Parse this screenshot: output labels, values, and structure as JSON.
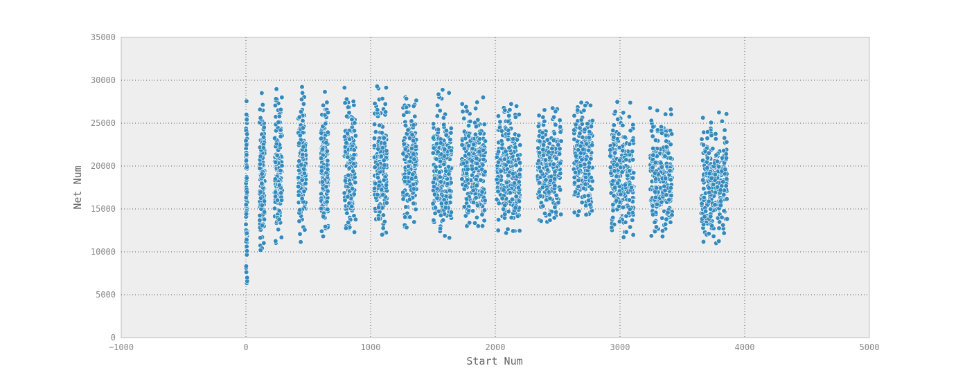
{
  "chart_data": {
    "type": "scatter",
    "title": "",
    "xlabel": "Start Num",
    "ylabel": "Net Num",
    "xlim": [
      -1000,
      5000
    ],
    "ylim": [
      0,
      35000
    ],
    "x_ticks": [
      -1000,
      0,
      1000,
      2000,
      3000,
      4000,
      5000
    ],
    "y_ticks": [
      0,
      5000,
      10000,
      15000,
      20000,
      25000,
      30000,
      35000
    ],
    "x_tick_labels": [
      "−1000",
      "0",
      "1000",
      "2000",
      "3000",
      "4000",
      "5000"
    ],
    "y_tick_labels": [
      "0",
      "5000",
      "10000",
      "15000",
      "20000",
      "25000",
      "30000",
      "35000"
    ],
    "grid": true,
    "legend": "none",
    "point_color": "#348abd",
    "point_edge_color": "#ffffff",
    "plot_background": "#eeeeee",
    "clusters": [
      {
        "x_min": 0,
        "x_max": 10,
        "y_min": 5600,
        "y_max": 30000
      },
      {
        "x_min": 110,
        "x_max": 150,
        "y_min": 10200,
        "y_max": 29400
      },
      {
        "x_min": 230,
        "x_max": 290,
        "y_min": 10800,
        "y_max": 29700
      },
      {
        "x_min": 420,
        "x_max": 480,
        "y_min": 11000,
        "y_max": 29300
      },
      {
        "x_min": 600,
        "x_max": 660,
        "y_min": 11000,
        "y_max": 29600
      },
      {
        "x_min": 790,
        "x_max": 880,
        "y_min": 12300,
        "y_max": 29200
      },
      {
        "x_min": 1030,
        "x_max": 1130,
        "y_min": 12000,
        "y_max": 29400
      },
      {
        "x_min": 1260,
        "x_max": 1370,
        "y_min": 12500,
        "y_max": 28900
      },
      {
        "x_min": 1500,
        "x_max": 1650,
        "y_min": 11100,
        "y_max": 29000
      },
      {
        "x_min": 1730,
        "x_max": 1920,
        "y_min": 13000,
        "y_max": 28200
      },
      {
        "x_min": 2010,
        "x_max": 2200,
        "y_min": 12200,
        "y_max": 28200
      },
      {
        "x_min": 2340,
        "x_max": 2530,
        "y_min": 13500,
        "y_max": 28300
      },
      {
        "x_min": 2630,
        "x_max": 2780,
        "y_min": 14200,
        "y_max": 27900
      },
      {
        "x_min": 2920,
        "x_max": 3110,
        "y_min": 11700,
        "y_max": 27500
      },
      {
        "x_min": 3240,
        "x_max": 3420,
        "y_min": 11800,
        "y_max": 27300
      },
      {
        "x_min": 3650,
        "x_max": 3860,
        "y_min": 10900,
        "y_max": 26600
      }
    ]
  }
}
